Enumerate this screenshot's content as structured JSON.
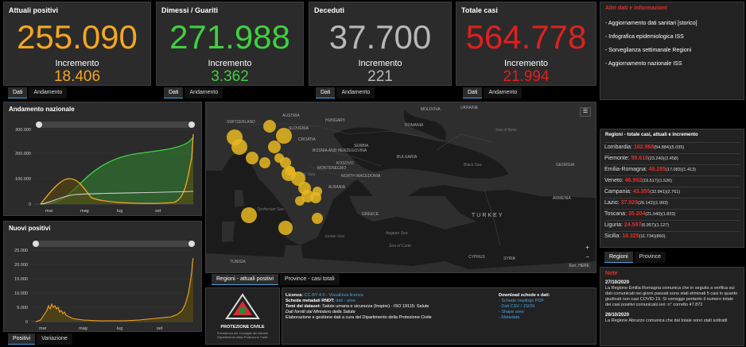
{
  "kpis": [
    {
      "title": "Attuali positivi",
      "value": "255.090",
      "inc_label": "Incremento",
      "inc_value": "18.406",
      "color": "#f5a623",
      "tabs": [
        "Dati",
        "Andamento"
      ]
    },
    {
      "title": "Dimessi / Guariti",
      "value": "271.988",
      "inc_label": "Incremento",
      "inc_value": "3.362",
      "color": "#40d040",
      "tabs": [
        "Dati",
        "Andamento"
      ]
    },
    {
      "title": "Deceduti",
      "value": "37.700",
      "inc_label": "Incremento",
      "inc_value": "221",
      "color": "#b8b8b8",
      "tabs": [
        "Dati",
        "Andamento"
      ]
    },
    {
      "title": "Totale casi",
      "value": "564.778",
      "inc_label": "Incremento",
      "inc_value": "21.994",
      "color": "#e02020",
      "tabs": [
        "Dati",
        "Andamento"
      ]
    }
  ],
  "altri_dati": {
    "title": "Altri dati e informazioni",
    "links": [
      "- Aggiornamento dati sanitari [storico]",
      "- Infografica epidemiologica ISS",
      "- Sorveglianza settimanale Regioni",
      "- Aggiornamento nazionale ISS"
    ]
  },
  "andamento": {
    "title": "Andamento nazionale",
    "y_ticks": [
      "300.000",
      "200.000",
      "100.000",
      "0"
    ],
    "x_ticks": [
      "mar",
      "mag",
      "lug",
      "set"
    ]
  },
  "nuovi": {
    "title": "Nuovi positivi",
    "y_ticks": [
      "25.000",
      "20.000",
      "15.000",
      "10.000",
      "5.000",
      "0"
    ],
    "x_ticks": [
      "mar",
      "mag",
      "lug",
      "set"
    ],
    "tabs": [
      "Positivi",
      "Variazione"
    ]
  },
  "map": {
    "labels": [
      "AUSTRIA",
      "HUNGARY",
      "SWITZERLAND",
      "SLOVENIA",
      "CROATIA",
      "ROMANIA",
      "MOLDOVA",
      "UKRAINE",
      "BOSNIA AND HERZEGOVINA",
      "SERBIA",
      "Black Sea",
      "BULGARIA",
      "Sea of Azov",
      "MONTENEGRO",
      "Adriatic Sea",
      "KOSOVO",
      "NORTH MACEDONIA",
      "ALBANIA",
      "Tyrrhenian Sea",
      "GREECE",
      "TURKEY",
      "GEORGIA",
      "ARMENIA",
      "Ionian Sea",
      "Aegean Sea",
      "Sea of Crete",
      "SYRIA",
      "CYPRUS",
      "TUNISIA"
    ],
    "credit": "Esri, HERE",
    "tabs": [
      "Regioni - attuali positivi",
      "Province - casi totali"
    ]
  },
  "regioni": {
    "title": "Regioni - totale casi, attuali e incremento",
    "rows": [
      {
        "name": "Lombardia:",
        "val": "162.968",
        "extra": "(54.884)(5.035)"
      },
      {
        "name": "Piemonte:",
        "val": "59.618",
        "extra": "(23.240)(2.458)"
      },
      {
        "name": "Emilia-Romagna:",
        "val": "49.285",
        "extra": "(17.083)(1.413)"
      },
      {
        "name": "Veneto:",
        "val": "46.992",
        "extra": "(19.517)(1.526)"
      },
      {
        "name": "Campania:",
        "val": "43.355",
        "extra": "(32.841)(2.761)"
      },
      {
        "name": "Lazio:",
        "val": "37.929",
        "extra": "(26.142)(1.993)"
      },
      {
        "name": "Toscana:",
        "val": "35.204",
        "extra": "(21.040)(1.823)"
      },
      {
        "name": "Liguria:",
        "val": "24.597",
        "extra": "(6.957)(1.127)"
      },
      {
        "name": "Sicilia:",
        "val": "18.325",
        "extra": "(11.734)(860)"
      }
    ],
    "tabs": [
      "Regioni",
      "Province"
    ]
  },
  "footer": {
    "logo_text": "PROTEZIONE CIVILE",
    "logo_sub": "Presidenza del Consiglio dei Ministri Dipartimento della Protezione Civile",
    "line1_label": "Licenza:",
    "line1_val": "CC-BY-4.0 - Visualizza licenza",
    "line2_label": "Scheda metadati RNDT:",
    "line2_val": "dati - aree",
    "line3_label": "Temi del dataset:",
    "line3_val": "Salute umana e sicurezza (Inspire) - ISO 19115: Salute",
    "line4": "Dati forniti dal Ministero della Salute",
    "line5": "Elaborazione e gestione dati a cura del Dipartimento della Protezione Civile",
    "download_title": "Download schede e dati:",
    "downloads": [
      "- Schede riepilogo PDF",
      "- Dati CSV / JSON",
      "- Shape aree",
      "- Metadata"
    ]
  },
  "note": {
    "title": "Note",
    "items": [
      {
        "date": "27/10/2020",
        "text": "La Regione Emilia Romagna comunica che in seguito a verifica sui dati comunicati nei giorni passati sono stati eliminati 5 casi in quanto giudicati non casi COVID-19. Si corregge pertanto il numero totale dei casi positivi comunicato ieri: n° corretto 47.872"
      },
      {
        "date": "26/10/2020",
        "text": "La Regione Abruzzo comunica che dal totale sono stati sottratti"
      }
    ]
  },
  "colors": {
    "attuali": "#f5a623",
    "guariti": "#40d040",
    "deceduti": "#b8b8b8",
    "totale": "#e02020",
    "map_bubble": "#e8b820",
    "link": "#4aa3df"
  }
}
